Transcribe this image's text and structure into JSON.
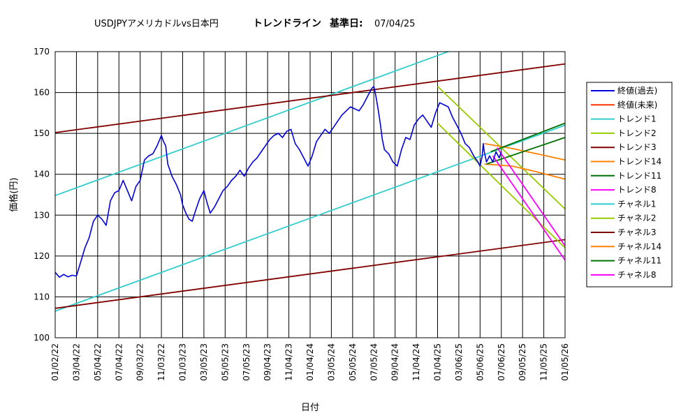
{
  "chart_data": {
    "type": "line",
    "title_main": "USDJPYアメリカドルvs日本円",
    "title_trend": "トレンドライン",
    "title_base_label": "基準日:",
    "title_base_date": "07/04/25",
    "xlabel": "日付",
    "ylabel": "価格(円)",
    "ylim": [
      100,
      170
    ],
    "y_ticks": [
      "100",
      "110",
      "120",
      "130",
      "140",
      "150",
      "160",
      "170"
    ],
    "x_ticks": [
      "01/02/22",
      "03/04/22",
      "05/04/22",
      "07/04/22",
      "09/03/22",
      "11/03/22",
      "01/03/23",
      "03/05/23",
      "05/05/23",
      "07/05/23",
      "09/04/23",
      "11/04/23",
      "01/04/24",
      "03/05/24",
      "05/05/24",
      "07/05/24",
      "09/04/24",
      "11/04/24",
      "01/04/25",
      "03/06/25",
      "05/06/25",
      "07/06/25",
      "09/05/25",
      "11/05/25",
      "01/05/26"
    ],
    "grid": true,
    "legend_position": "right",
    "series": [
      {
        "name": "終値(過去)",
        "color": "#0000dd",
        "points": [
          [
            0,
            116.0
          ],
          [
            0.2,
            114.8
          ],
          [
            0.4,
            115.5
          ],
          [
            0.6,
            114.9
          ],
          [
            0.8,
            115.3
          ],
          [
            1.0,
            115.1
          ],
          [
            1.2,
            118.5
          ],
          [
            1.4,
            122.0
          ],
          [
            1.6,
            124.5
          ],
          [
            1.8,
            128.5
          ],
          [
            2.0,
            130.0
          ],
          [
            2.2,
            129.0
          ],
          [
            2.4,
            127.5
          ],
          [
            2.6,
            133.5
          ],
          [
            2.8,
            135.5
          ],
          [
            3.0,
            136.0
          ],
          [
            3.2,
            138.5
          ],
          [
            3.4,
            136.0
          ],
          [
            3.6,
            133.5
          ],
          [
            3.8,
            137.0
          ],
          [
            4.0,
            138.5
          ],
          [
            4.2,
            143.5
          ],
          [
            4.4,
            144.5
          ],
          [
            4.6,
            145.0
          ],
          [
            4.8,
            147.0
          ],
          [
            5.0,
            149.5
          ],
          [
            5.1,
            148.0
          ],
          [
            5.2,
            147.0
          ],
          [
            5.3,
            142.5
          ],
          [
            5.5,
            139.5
          ],
          [
            5.7,
            137.5
          ],
          [
            5.9,
            135.0
          ],
          [
            6.0,
            132.5
          ],
          [
            6.15,
            130.5
          ],
          [
            6.3,
            129.0
          ],
          [
            6.45,
            128.5
          ],
          [
            6.6,
            131.0
          ],
          [
            6.8,
            134.0
          ],
          [
            7.0,
            136.0
          ],
          [
            7.15,
            133.0
          ],
          [
            7.3,
            130.5
          ],
          [
            7.5,
            132.0
          ],
          [
            7.7,
            134.0
          ],
          [
            7.9,
            136.0
          ],
          [
            8.1,
            137.0
          ],
          [
            8.3,
            138.5
          ],
          [
            8.5,
            139.5
          ],
          [
            8.7,
            141.0
          ],
          [
            8.9,
            139.5
          ],
          [
            9.1,
            141.5
          ],
          [
            9.3,
            143.0
          ],
          [
            9.5,
            144.0
          ],
          [
            9.7,
            145.5
          ],
          [
            9.9,
            147.0
          ],
          [
            10.1,
            148.5
          ],
          [
            10.3,
            149.5
          ],
          [
            10.5,
            150.0
          ],
          [
            10.7,
            149.0
          ],
          [
            10.9,
            150.5
          ],
          [
            11.1,
            151.0
          ],
          [
            11.3,
            147.5
          ],
          [
            11.5,
            146.0
          ],
          [
            11.7,
            144.0
          ],
          [
            11.9,
            142.0
          ],
          [
            12.1,
            144.5
          ],
          [
            12.3,
            148.0
          ],
          [
            12.5,
            149.5
          ],
          [
            12.7,
            151.0
          ],
          [
            12.9,
            150.0
          ],
          [
            13.1,
            151.5
          ],
          [
            13.3,
            153.0
          ],
          [
            13.5,
            154.5
          ],
          [
            13.7,
            155.5
          ],
          [
            13.9,
            156.5
          ],
          [
            14.1,
            156.0
          ],
          [
            14.3,
            155.5
          ],
          [
            14.5,
            157.0
          ],
          [
            14.7,
            159.0
          ],
          [
            14.9,
            161.0
          ],
          [
            15.0,
            161.5
          ],
          [
            15.1,
            159.0
          ],
          [
            15.2,
            156.0
          ],
          [
            15.3,
            152.5
          ],
          [
            15.4,
            148.5
          ],
          [
            15.5,
            146.0
          ],
          [
            15.7,
            145.0
          ],
          [
            15.9,
            143.0
          ],
          [
            16.1,
            142.0
          ],
          [
            16.3,
            146.0
          ],
          [
            16.5,
            149.0
          ],
          [
            16.7,
            148.5
          ],
          [
            16.9,
            152.0
          ],
          [
            17.1,
            153.5
          ],
          [
            17.3,
            154.5
          ],
          [
            17.5,
            153.0
          ],
          [
            17.7,
            151.5
          ],
          [
            17.9,
            155.0
          ],
          [
            18.1,
            157.5
          ],
          [
            18.3,
            157.0
          ],
          [
            18.5,
            156.5
          ],
          [
            18.7,
            154.0
          ],
          [
            18.9,
            152.0
          ],
          [
            19.1,
            150.0
          ],
          [
            19.3,
            147.5
          ],
          [
            19.5,
            146.5
          ],
          [
            19.7,
            144.5
          ],
          [
            19.9,
            143.0
          ],
          [
            20.0,
            142.0
          ],
          [
            20.1,
            144.5
          ],
          [
            20.15,
            147.5
          ],
          [
            20.2,
            145.5
          ],
          [
            20.3,
            143.0
          ],
          [
            20.45,
            144.5
          ],
          [
            20.6,
            143.0
          ],
          [
            20.75,
            145.5
          ],
          [
            20.9,
            144.0
          ],
          [
            21.0,
            145.5
          ]
        ]
      },
      {
        "name": "終値(未来)",
        "color": "#ff3300",
        "points": []
      },
      {
        "name": "トレンド1",
        "color": "#33cccc",
        "points": [
          [
            0,
            134.8
          ],
          [
            18.5,
            170.0
          ]
        ]
      },
      {
        "name": "トレンド2",
        "color": "#99cc00",
        "points": [
          [
            18,
            161.5
          ],
          [
            24,
            131.5
          ]
        ]
      },
      {
        "name": "トレンド3",
        "color": "#800000",
        "points": [
          [
            0,
            150.2
          ],
          [
            24,
            167.0
          ]
        ]
      },
      {
        "name": "トレンド14",
        "color": "#ff8000",
        "points": [
          [
            20.2,
            147.5
          ],
          [
            21.5,
            146.3
          ],
          [
            22.5,
            145.2
          ],
          [
            24,
            143.5
          ]
        ]
      },
      {
        "name": "トレンド11",
        "color": "#007000",
        "points": [
          [
            20.5,
            145.5
          ],
          [
            24,
            152.5
          ]
        ]
      },
      {
        "name": "トレンド8",
        "color": "#ff00ff",
        "points": [
          [
            20.8,
            146.5
          ],
          [
            24,
            122.5
          ]
        ]
      },
      {
        "name": "チャネル1",
        "color": "#33cccc",
        "points": [
          [
            0,
            106.5
          ],
          [
            24,
            152.0
          ]
        ]
      },
      {
        "name": "チャネル2",
        "color": "#99cc00",
        "points": [
          [
            18,
            152.5
          ],
          [
            24,
            122.0
          ]
        ]
      },
      {
        "name": "チャネル3",
        "color": "#800000",
        "points": [
          [
            0,
            107.2
          ],
          [
            24,
            124.0
          ]
        ]
      },
      {
        "name": "チャネル14",
        "color": "#ff8000",
        "points": [
          [
            20.2,
            142.5
          ],
          [
            21.5,
            142.0
          ],
          [
            22.5,
            140.8
          ],
          [
            24,
            138.8
          ]
        ]
      },
      {
        "name": "チャネル11",
        "color": "#007000",
        "points": [
          [
            20.3,
            142.5
          ],
          [
            24,
            149.0
          ]
        ]
      },
      {
        "name": "チャネル8",
        "color": "#ff00ff",
        "points": [
          [
            20.6,
            144.5
          ],
          [
            24,
            119.0
          ]
        ]
      }
    ]
  }
}
